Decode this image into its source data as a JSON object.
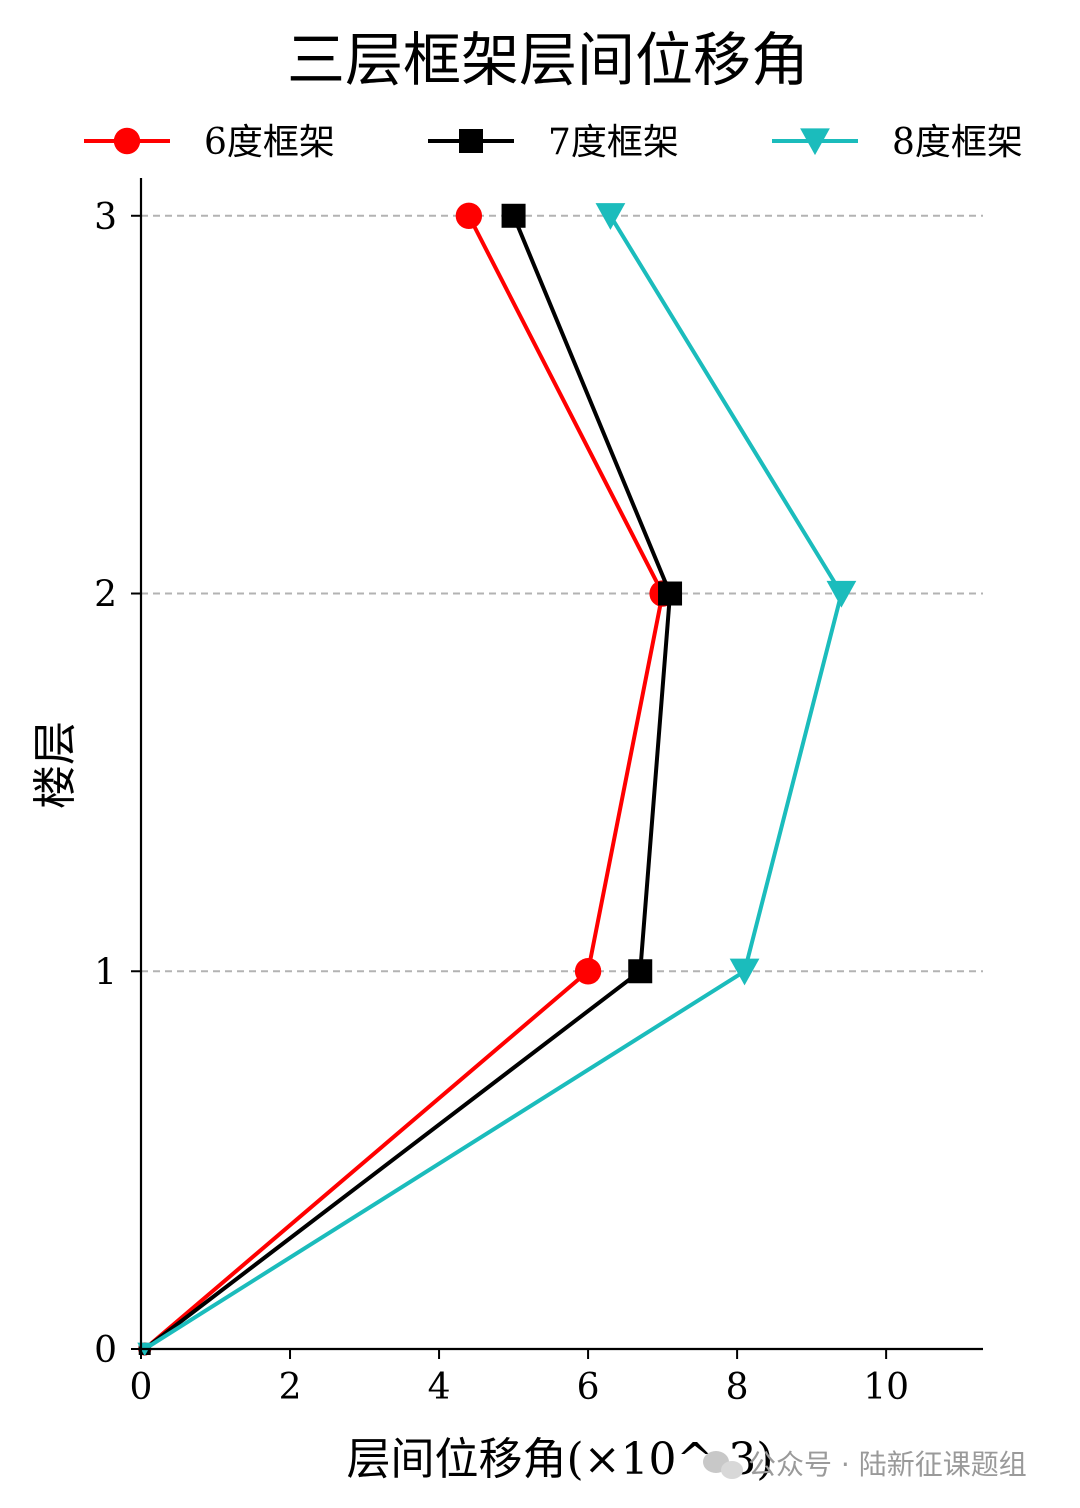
{
  "chart_data": {
    "type": "line",
    "title": "三层框架层间位移角",
    "xlabel": "层间位移角(×10^-3)",
    "ylabel": "楼层",
    "xlim": [
      0,
      11.3
    ],
    "ylim": [
      0,
      3.1
    ],
    "xticks": [
      0,
      2,
      4,
      6,
      8,
      10
    ],
    "yticks": [
      0,
      1,
      2,
      3
    ],
    "grid": "horizontal dashed at y ticks 1-3",
    "legend_position": "top, horizontal",
    "series": [
      {
        "name": "6度框架",
        "color": "#ff0000",
        "marker": "circle",
        "x": [
          0.05,
          6.0,
          7.0,
          4.4
        ],
        "y": [
          0,
          1,
          2,
          3
        ]
      },
      {
        "name": "7度框架",
        "color": "#000000",
        "marker": "square",
        "x": [
          0.05,
          6.7,
          7.1,
          5.0
        ],
        "y": [
          0,
          1,
          2,
          3
        ]
      },
      {
        "name": "8度框架",
        "color": "#1bbcbc",
        "marker": "triangle-down",
        "x": [
          0.05,
          8.1,
          9.4,
          6.3
        ],
        "y": [
          0,
          1,
          2,
          3
        ]
      }
    ]
  },
  "watermark": "公众号 · 陆新征课题组"
}
